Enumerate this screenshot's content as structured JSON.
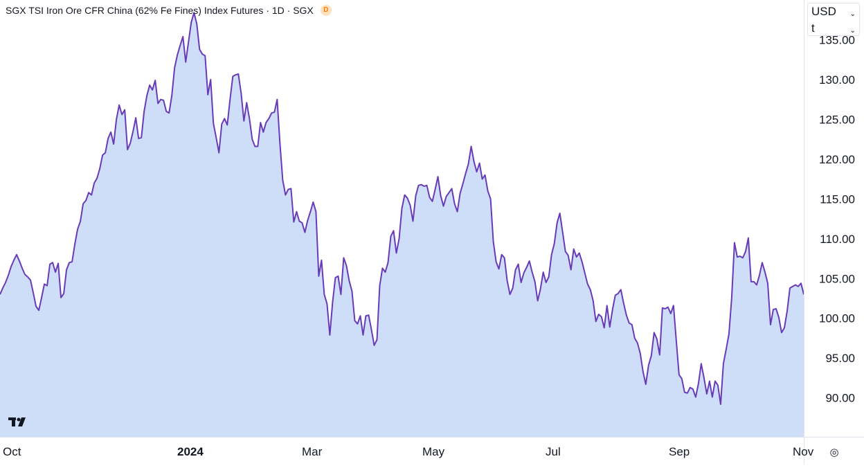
{
  "title": "SGX TSI Iron Ore CFR China (62% Fe Fines) Index Futures · 1D · SGX",
  "title_badge": "D",
  "currency": {
    "line1": "USD",
    "line2": "t"
  },
  "icons": {
    "logo": "tradingview-logo",
    "settings": "settings-gear-icon",
    "chevron": "chevron-down-icon"
  },
  "colors": {
    "line": "#673ab7",
    "fill": "#cfdef8",
    "axis_text": "#131722",
    "border": "#e0e3eb"
  },
  "chart_data": {
    "type": "area",
    "title": "SGX TSI Iron Ore CFR China (62% Fe Fines) Index Futures · 1D · SGX",
    "ylabel": "",
    "xlabel": "",
    "ylim": [
      85.1,
      140
    ],
    "y_ticks": [
      "135.00",
      "130.00",
      "125.00",
      "120.00",
      "115.00",
      "110.00",
      "105.00",
      "100.00",
      "95.00",
      "90.00"
    ],
    "x_ticks": [
      "Oct",
      "2024",
      "Mar",
      "May",
      "Jul",
      "Sep",
      "Nov"
    ],
    "series": [
      {
        "values": [
          103.0,
          103.8,
          104.5,
          105.4,
          106.5,
          107.3,
          108.0,
          107.2,
          106.3,
          105.5,
          105.2,
          104.8,
          103.2,
          101.5,
          101.0,
          102.6,
          104.3,
          104.1,
          106.8,
          107.0,
          105.8,
          106.9,
          102.6,
          103.1,
          106.1,
          107.0,
          107.1,
          109.3,
          111.2,
          112.2,
          114.4,
          114.8,
          115.8,
          115.5,
          117.0,
          117.6,
          118.8,
          120.5,
          120.8,
          122.6,
          123.4,
          121.9,
          125.0,
          126.8,
          125.6,
          126.2,
          121.2,
          122.0,
          123.5,
          125.2,
          122.6,
          122.7,
          126.0,
          128.0,
          129.3,
          128.7,
          129.9,
          127.0,
          127.5,
          127.4,
          126.0,
          125.8,
          128.0,
          131.5,
          133.1,
          134.3,
          135.4,
          132.2,
          134.7,
          137.2,
          138.4,
          137.0,
          133.8,
          133.2,
          133.0,
          128.1,
          130.0,
          124.5,
          122.7,
          120.8,
          124.4,
          125.1,
          124.3,
          127.5,
          130.4,
          130.6,
          130.7,
          128.3,
          124.8,
          127.1,
          125.1,
          122.5,
          121.6,
          121.6,
          124.6,
          123.4,
          124.6,
          125.1,
          125.8,
          125.9,
          127.5,
          122.0,
          117.4,
          115.5,
          116.2,
          116.3,
          112.1,
          113.4,
          112.2,
          112.0,
          110.8,
          112.3,
          113.4,
          114.6,
          113.4,
          105.3,
          107.3,
          103.0,
          101.8,
          97.9,
          102.0,
          105.1,
          105.3,
          103.0,
          107.6,
          106.6,
          104.7,
          103.4,
          99.7,
          99.3,
          100.3,
          97.9,
          100.3,
          100.4,
          98.6,
          96.6,
          97.3,
          104.1,
          106.3,
          105.8,
          107.0,
          110.3,
          111.0,
          108.2,
          110.0,
          113.8,
          115.5,
          115.1,
          114.2,
          112.2,
          115.4,
          116.7,
          116.8,
          116.6,
          116.7,
          115.2,
          114.7,
          116.2,
          117.8,
          115.4,
          114.1,
          115.3,
          115.8,
          116.3,
          114.4,
          113.4,
          115.7,
          116.9,
          118.2,
          119.4,
          121.6,
          119.7,
          118.4,
          119.5,
          117.5,
          118.0,
          116.0,
          115.0,
          109.6,
          107.1,
          106.2,
          108.0,
          107.6,
          104.7,
          103.0,
          103.8,
          106.1,
          106.8,
          104.5,
          105.7,
          106.4,
          107.2,
          105.8,
          104.6,
          102.2,
          103.7,
          105.8,
          104.5,
          105.2,
          108.0,
          109.4,
          112.0,
          113.2,
          110.8,
          108.4,
          107.9,
          106.1,
          108.7,
          107.7,
          108.2,
          107.1,
          105.7,
          104.3,
          103.6,
          102.2,
          99.6,
          100.5,
          100.2,
          98.8,
          101.6,
          98.9,
          101.1,
          102.9,
          103.1,
          103.6,
          101.9,
          100.4,
          99.4,
          99.2,
          97.5,
          96.9,
          95.6,
          93.3,
          91.7,
          94.1,
          95.3,
          98.2,
          97.4,
          95.4,
          101.3,
          101.2,
          101.4,
          100.6,
          101.6,
          97.2,
          92.9,
          92.4,
          90.7,
          90.6,
          91.3,
          91.1,
          90.1,
          91.8,
          94.3,
          92.5,
          90.5,
          92.1,
          90.1,
          92.1,
          91.6,
          89.2,
          94.3,
          96.1,
          98.0,
          102.6,
          109.5,
          107.7,
          107.8,
          107.6,
          108.4,
          110.1,
          104.6,
          104.6,
          104.2,
          105.4,
          107.0,
          105.8,
          104.4,
          99.2,
          101.1,
          101.2,
          100.1,
          98.2,
          98.8,
          100.9,
          103.8,
          104.0,
          104.2,
          104.0,
          104.4,
          103.0
        ]
      }
    ]
  }
}
